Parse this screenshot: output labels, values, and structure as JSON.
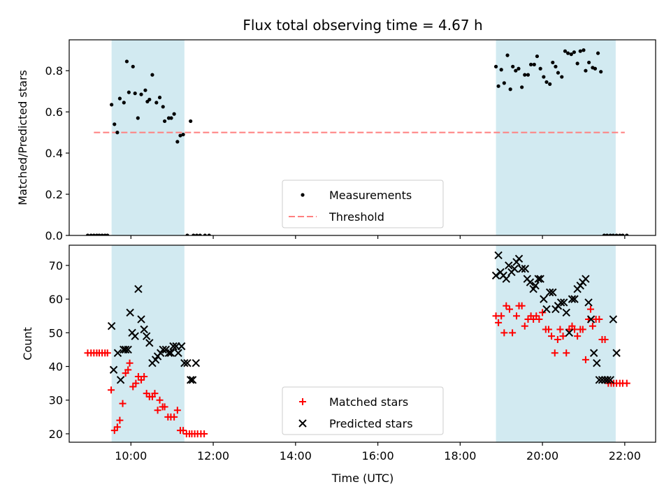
{
  "title": "Flux total observing time = 4.67 h",
  "xlabel": "Time (UTC)",
  "xticks": [
    {
      "h": 10,
      "label": "10:00"
    },
    {
      "h": 12,
      "label": "12:00"
    },
    {
      "h": 14,
      "label": "14:00"
    },
    {
      "h": 16,
      "label": "16:00"
    },
    {
      "h": 18,
      "label": "18:00"
    },
    {
      "h": 20,
      "label": "20:00"
    },
    {
      "h": 22,
      "label": "22:00"
    }
  ],
  "colors": {
    "shade": "#add8e6",
    "threshold": "#ff7f7f",
    "matched": "#ff0000",
    "predicted": "#000000",
    "measurement": "#000000"
  },
  "chart_data": [
    {
      "type": "scatter",
      "ylabel": "Matched/Predicted stars",
      "xlim": [
        8.5,
        22.75
      ],
      "ylim": [
        0.0,
        0.95
      ],
      "yticks": [
        "0.0",
        "0.2",
        "0.4",
        "0.6",
        "0.8"
      ],
      "observing_windows": [
        [
          9.53,
          11.3
        ],
        [
          18.87,
          21.78
        ]
      ],
      "threshold": {
        "name": "Threshold",
        "y": 0.5,
        "x": [
          9.1,
          22.0
        ]
      },
      "legend": {
        "position": "lower center",
        "entries": [
          "Measurements",
          "Threshold"
        ]
      },
      "series": [
        {
          "name": "Measurements",
          "x": [
            8.95,
            9.03,
            9.1,
            9.17,
            9.23,
            9.3,
            9.37,
            9.43,
            9.53,
            9.6,
            9.67,
            9.73,
            9.83,
            9.9,
            9.95,
            10.05,
            10.1,
            10.17,
            10.25,
            10.35,
            10.4,
            10.45,
            10.52,
            10.62,
            10.7,
            10.78,
            10.82,
            10.92,
            10.98,
            11.05,
            11.13,
            11.2,
            11.27,
            11.37,
            11.45,
            11.52,
            11.6,
            11.68,
            11.8,
            11.9,
            18.87,
            18.93,
            19.0,
            19.07,
            19.15,
            19.22,
            19.28,
            19.35,
            19.42,
            19.5,
            19.57,
            19.65,
            19.72,
            19.8,
            19.87,
            19.95,
            20.03,
            20.1,
            20.18,
            20.25,
            20.32,
            20.38,
            20.47,
            20.55,
            20.62,
            20.7,
            20.77,
            20.85,
            20.92,
            21.0,
            21.05,
            21.13,
            21.22,
            21.28,
            21.35,
            21.42,
            21.5,
            21.57,
            21.65,
            21.72,
            21.8,
            21.88,
            21.95,
            22.05
          ],
          "y": [
            0.0,
            0.0,
            0.0,
            0.0,
            0.0,
            0.0,
            0.0,
            0.0,
            0.635,
            0.54,
            0.5,
            0.665,
            0.645,
            0.845,
            0.695,
            0.82,
            0.69,
            0.57,
            0.685,
            0.705,
            0.65,
            0.66,
            0.78,
            0.645,
            0.67,
            0.625,
            0.555,
            0.57,
            0.57,
            0.59,
            0.455,
            0.485,
            0.49,
            0.0,
            0.555,
            0.0,
            0.0,
            0.0,
            0.0,
            0.0,
            0.82,
            0.725,
            0.805,
            0.74,
            0.875,
            0.71,
            0.82,
            0.8,
            0.81,
            0.72,
            0.78,
            0.78,
            0.83,
            0.83,
            0.87,
            0.81,
            0.77,
            0.745,
            0.735,
            0.84,
            0.82,
            0.79,
            0.77,
            0.895,
            0.885,
            0.88,
            0.89,
            0.835,
            0.895,
            0.9,
            0.8,
            0.84,
            0.815,
            0.81,
            0.885,
            0.795,
            0.0,
            0.0,
            0.0,
            0.0,
            0.0,
            0.0,
            0.0,
            0.0
          ]
        }
      ]
    },
    {
      "type": "scatter",
      "ylabel": "Count",
      "xlim": [
        8.5,
        22.75
      ],
      "ylim": [
        17.5,
        76
      ],
      "yticks": [
        "20",
        "30",
        "40",
        "50",
        "60",
        "70"
      ],
      "observing_windows": [
        [
          9.53,
          11.3
        ],
        [
          18.87,
          21.78
        ]
      ],
      "legend": {
        "position": "lower center",
        "entries": [
          "Matched stars",
          "Predicted stars"
        ]
      },
      "series": [
        {
          "name": "Matched stars",
          "marker": "plus",
          "x": [
            8.95,
            9.03,
            9.1,
            9.17,
            9.23,
            9.3,
            9.37,
            9.43,
            9.52,
            9.6,
            9.67,
            9.73,
            9.8,
            9.87,
            9.93,
            9.97,
            10.05,
            10.12,
            10.18,
            10.25,
            10.32,
            10.38,
            10.45,
            10.52,
            10.58,
            10.65,
            10.7,
            10.77,
            10.82,
            10.9,
            10.97,
            11.05,
            11.13,
            11.2,
            11.27,
            11.35,
            11.42,
            11.48,
            11.55,
            11.62,
            11.7,
            11.78,
            18.87,
            18.93,
            19.0,
            19.07,
            19.12,
            19.2,
            19.27,
            19.37,
            19.43,
            19.5,
            19.57,
            19.65,
            19.72,
            19.78,
            19.85,
            19.92,
            20.0,
            20.08,
            20.15,
            20.22,
            20.3,
            20.37,
            20.43,
            20.5,
            20.58,
            20.65,
            20.72,
            20.78,
            20.85,
            20.92,
            20.98,
            21.05,
            21.12,
            21.17,
            21.22,
            21.3,
            21.38,
            21.45,
            21.52,
            21.6,
            21.67,
            21.73,
            21.8,
            21.88,
            21.95,
            22.05
          ],
          "y": [
            44,
            44,
            44,
            44,
            44,
            44,
            44,
            44,
            33,
            21,
            22,
            24,
            29,
            38,
            39,
            41,
            34,
            35,
            37,
            36,
            37,
            32,
            31,
            31,
            32,
            27,
            30,
            28,
            28,
            25,
            25,
            25,
            27,
            21,
            21,
            20,
            20,
            20,
            20,
            20,
            20,
            20,
            55,
            53,
            55,
            50,
            58,
            57,
            50,
            55,
            58,
            58,
            52,
            54,
            55,
            54,
            55,
            54,
            56,
            51,
            51,
            49,
            44,
            48,
            51,
            49,
            44,
            51,
            52,
            51,
            49,
            51,
            51,
            42,
            54,
            57,
            52,
            54,
            54,
            48,
            48,
            35,
            35,
            35,
            35,
            35,
            35,
            35
          ]
        },
        {
          "name": "Predicted stars",
          "marker": "x",
          "x": [
            9.53,
            9.58,
            9.68,
            9.75,
            9.82,
            9.87,
            9.93,
            9.98,
            10.03,
            10.1,
            10.18,
            10.25,
            10.32,
            10.38,
            10.45,
            10.52,
            10.6,
            10.65,
            10.72,
            10.78,
            10.85,
            10.92,
            10.97,
            11.03,
            11.1,
            11.15,
            11.23,
            11.3,
            11.37,
            11.45,
            11.5,
            11.58,
            18.87,
            18.93,
            18.98,
            19.05,
            19.12,
            19.18,
            19.25,
            19.32,
            19.37,
            19.43,
            19.5,
            19.58,
            19.63,
            19.7,
            19.78,
            19.83,
            19.9,
            19.95,
            20.03,
            20.1,
            20.18,
            20.25,
            20.32,
            20.38,
            20.45,
            20.52,
            20.58,
            20.65,
            20.72,
            20.78,
            20.85,
            20.92,
            20.98,
            21.05,
            21.12,
            21.18,
            21.25,
            21.32,
            21.38,
            21.45,
            21.52,
            21.58,
            21.65,
            21.72,
            21.8
          ],
          "y": [
            52,
            39,
            44,
            36,
            45,
            45,
            45,
            56,
            50,
            49,
            63,
            54,
            51,
            49,
            47,
            41,
            42,
            43,
            44,
            45,
            45,
            44,
            44,
            46,
            46,
            44,
            46,
            41,
            41,
            36,
            36,
            41,
            67,
            73,
            68,
            67,
            66,
            70,
            68,
            69,
            71,
            72,
            69,
            69,
            66,
            65,
            63,
            64,
            66,
            66,
            60,
            57,
            62,
            62,
            57,
            58,
            59,
            59,
            56,
            50,
            60,
            60,
            63,
            64,
            65,
            66,
            59,
            54,
            44,
            41,
            36,
            36,
            36,
            36,
            36,
            54,
            44
          ]
        }
      ]
    }
  ]
}
